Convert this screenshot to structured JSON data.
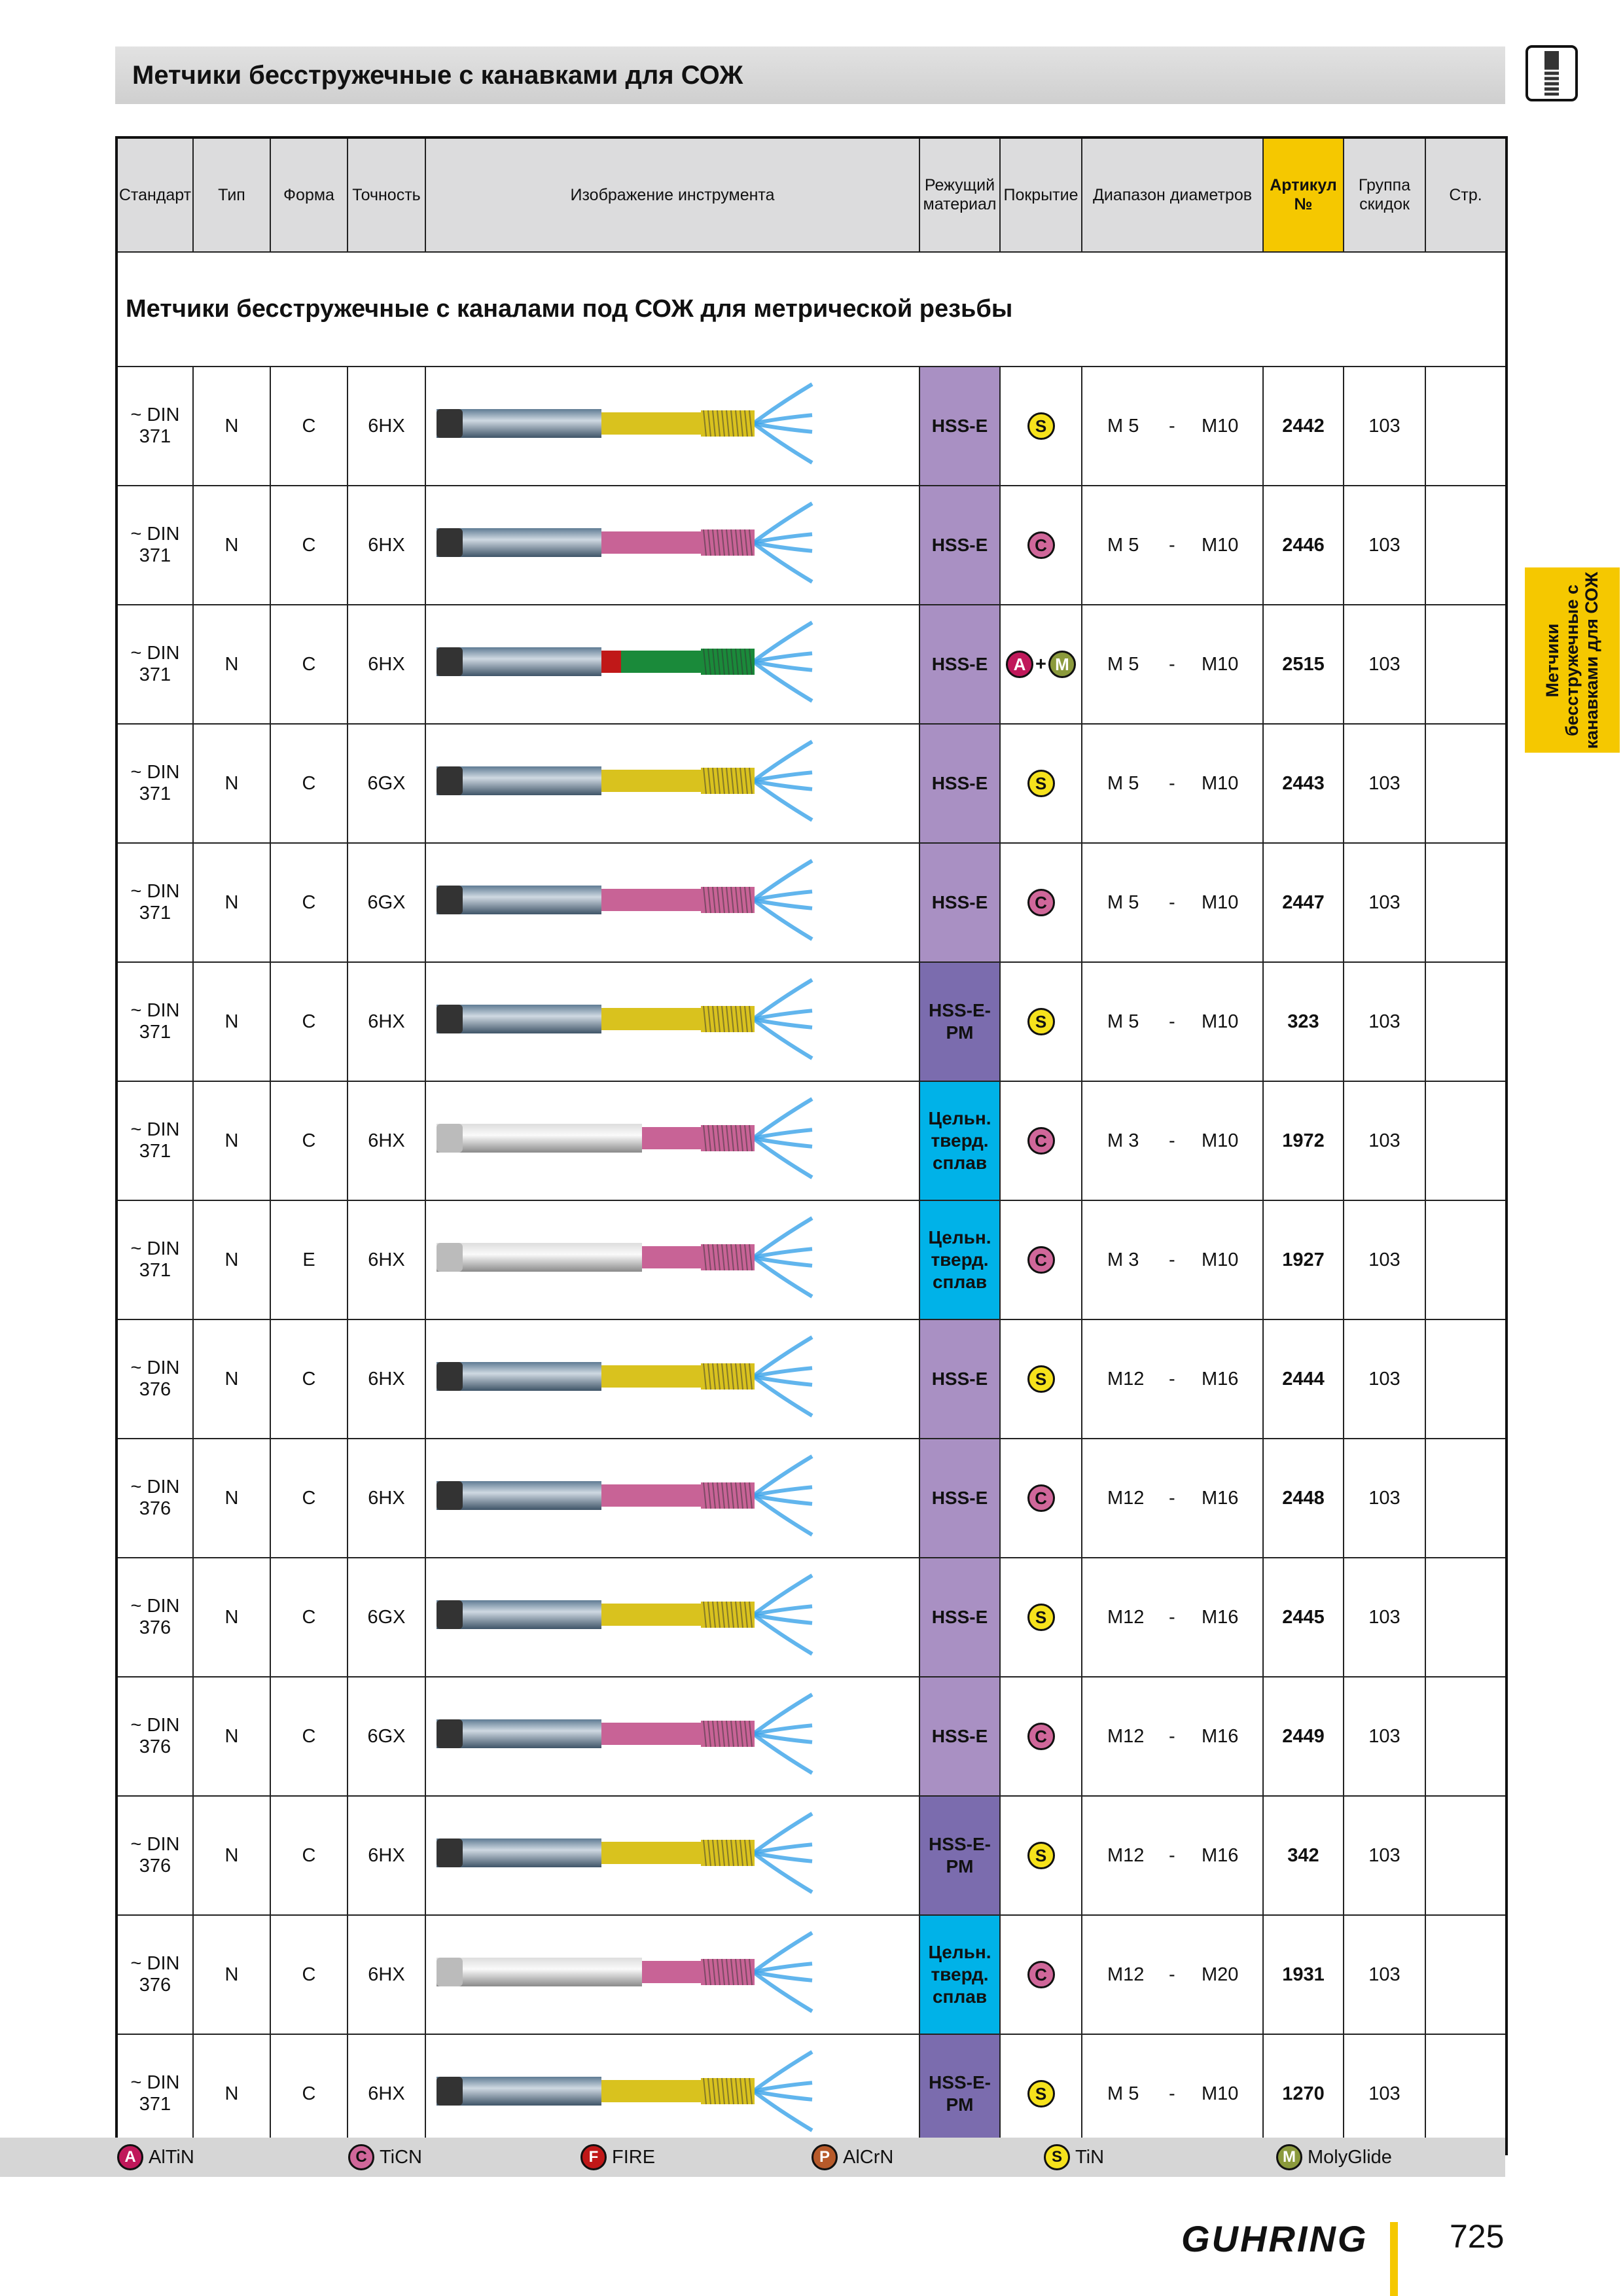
{
  "header": {
    "title": "Метчики бесстружечные с канавками для СОЖ"
  },
  "side_tab": "Метчики бесстружечные с канавками для СОЖ",
  "table": {
    "columns": [
      "Стандарт",
      "Тип",
      "Форма",
      "Точность",
      "Изображение инструмента",
      "Режущий материал",
      "Покрытие",
      "Диапазон диаметров",
      "Артикул №",
      "Группа скидок",
      "Стр."
    ],
    "section_title": "Метчики бесстружечные с каналами под СОЖ для метрической резьбы",
    "range_separator": "-",
    "rows": [
      {
        "standard": "~ DIN 371",
        "type": "N",
        "form": "C",
        "accuracy": "6HX",
        "material": "HSS-E",
        "coating": [
          "S"
        ],
        "from": "M 5",
        "to": "M10",
        "article": "2442",
        "group": "103"
      },
      {
        "standard": "~ DIN 371",
        "type": "N",
        "form": "C",
        "accuracy": "6HX",
        "material": "HSS-E",
        "coating": [
          "C"
        ],
        "from": "M 5",
        "to": "M10",
        "article": "2446",
        "group": "103"
      },
      {
        "standard": "~ DIN 371",
        "type": "N",
        "form": "C",
        "accuracy": "6HX",
        "material": "HSS-E",
        "coating": [
          "A",
          "+",
          "M"
        ],
        "from": "M 5",
        "to": "M10",
        "article": "2515",
        "group": "103"
      },
      {
        "standard": "~ DIN 371",
        "type": "N",
        "form": "C",
        "accuracy": "6GX",
        "material": "HSS-E",
        "coating": [
          "S"
        ],
        "from": "M 5",
        "to": "M10",
        "article": "2443",
        "group": "103"
      },
      {
        "standard": "~ DIN 371",
        "type": "N",
        "form": "C",
        "accuracy": "6GX",
        "material": "HSS-E",
        "coating": [
          "C"
        ],
        "from": "M 5",
        "to": "M10",
        "article": "2447",
        "group": "103"
      },
      {
        "standard": "~ DIN 371",
        "type": "N",
        "form": "C",
        "accuracy": "6HX",
        "material": "HSS-E-PM",
        "coating": [
          "S"
        ],
        "from": "M 5",
        "to": "M10",
        "article": "323",
        "group": "103"
      },
      {
        "standard": "~ DIN 371",
        "type": "N",
        "form": "C",
        "accuracy": "6HX",
        "material": "Цельн. тверд. сплав",
        "coating": [
          "C"
        ],
        "from": "M 3",
        "to": "M10",
        "article": "1972",
        "group": "103"
      },
      {
        "standard": "~ DIN 371",
        "type": "N",
        "form": "E",
        "accuracy": "6HX",
        "material": "Цельн. тверд. сплав",
        "coating": [
          "C"
        ],
        "from": "M 3",
        "to": "M10",
        "article": "1927",
        "group": "103"
      },
      {
        "standard": "~ DIN 376",
        "type": "N",
        "form": "C",
        "accuracy": "6HX",
        "material": "HSS-E",
        "coating": [
          "S"
        ],
        "from": "M12",
        "to": "M16",
        "article": "2444",
        "group": "103"
      },
      {
        "standard": "~ DIN 376",
        "type": "N",
        "form": "C",
        "accuracy": "6HX",
        "material": "HSS-E",
        "coating": [
          "C"
        ],
        "from": "M12",
        "to": "M16",
        "article": "2448",
        "group": "103"
      },
      {
        "standard": "~ DIN 376",
        "type": "N",
        "form": "C",
        "accuracy": "6GX",
        "material": "HSS-E",
        "coating": [
          "S"
        ],
        "from": "M12",
        "to": "M16",
        "article": "2445",
        "group": "103"
      },
      {
        "standard": "~ DIN 376",
        "type": "N",
        "form": "C",
        "accuracy": "6GX",
        "material": "HSS-E",
        "coating": [
          "C"
        ],
        "from": "M12",
        "to": "M16",
        "article": "2449",
        "group": "103"
      },
      {
        "standard": "~ DIN 376",
        "type": "N",
        "form": "C",
        "accuracy": "6HX",
        "material": "HSS-E-PM",
        "coating": [
          "S"
        ],
        "from": "M12",
        "to": "M16",
        "article": "342",
        "group": "103"
      },
      {
        "standard": "~ DIN 376",
        "type": "N",
        "form": "C",
        "accuracy": "6HX",
        "material": "Цельн. тверд. сплав",
        "coating": [
          "C"
        ],
        "from": "M12",
        "to": "M20",
        "article": "1931",
        "group": "103"
      },
      {
        "standard": "~ DIN 371",
        "type": "N",
        "form": "C",
        "accuracy": "6HX",
        "material": "HSS-E-PM",
        "coating": [
          "S"
        ],
        "from": "M 5",
        "to": "M10",
        "article": "1270",
        "group": "103"
      }
    ]
  },
  "legend": [
    {
      "icon": "A",
      "label": "AlTiN"
    },
    {
      "icon": "C",
      "label": "TiCN"
    },
    {
      "icon": "F",
      "label": "FIRE"
    },
    {
      "icon": "P",
      "label": "AlCrN"
    },
    {
      "icon": "S",
      "label": "TiN"
    },
    {
      "icon": "M",
      "label": "MolyGlide"
    }
  ],
  "footer": {
    "brand": "GUHRING",
    "page": "725"
  }
}
